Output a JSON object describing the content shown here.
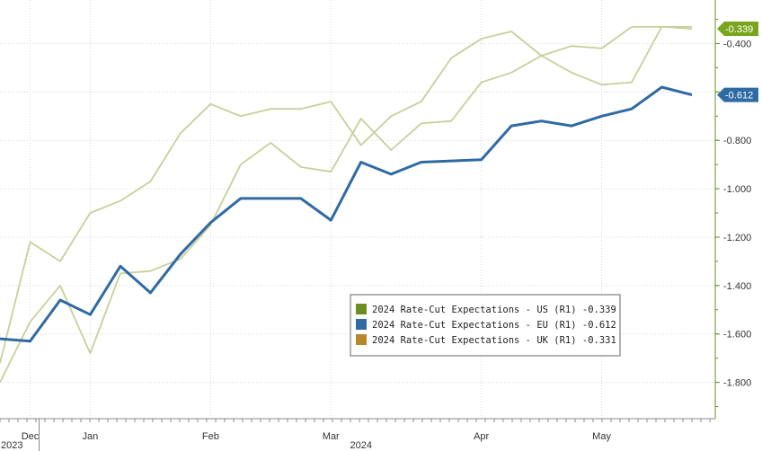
{
  "chart_data": {
    "type": "line",
    "x_labels": [
      "Dec",
      "Jan",
      "Feb",
      "Mar",
      "Apr",
      "May"
    ],
    "year_labels": [
      "2023",
      "2024"
    ],
    "y_axis_side": "right",
    "ylim": [
      -1.95,
      -0.22
    ],
    "y_ticks": [
      -0.4,
      -0.6,
      -0.8,
      -1.0,
      -1.2,
      -1.4,
      -1.6,
      -1.8
    ],
    "y_tick_labels": [
      "-0.400",
      "-0.600",
      "-0.800",
      "-1.000",
      "-1.200",
      "-1.400",
      "-1.600",
      "-1.800"
    ],
    "grid": true,
    "legend_position": "bottom-right",
    "x_range": [
      0,
      23
    ],
    "month_positions": [
      1,
      3,
      7,
      11,
      16,
      20
    ],
    "series": [
      {
        "name": "2024 Rate-Cut Expectations - US (R1)",
        "legend_value": "-0.339",
        "legend_color": "#6b8e23",
        "color": "#c9cf9a",
        "x": [
          0,
          1,
          2,
          3,
          4,
          5,
          6,
          7,
          8,
          9,
          10,
          11,
          12,
          13,
          14,
          15,
          16,
          17,
          18,
          19,
          20,
          21,
          22,
          23
        ],
        "values": [
          -1.8,
          -1.55,
          -1.4,
          -1.68,
          -1.35,
          -1.34,
          -1.29,
          -1.15,
          -0.9,
          -0.81,
          -0.91,
          -0.93,
          -0.71,
          -0.84,
          -0.73,
          -0.72,
          -0.56,
          -0.52,
          -0.45,
          -0.52,
          -0.57,
          -0.56,
          -0.33,
          -0.339
        ],
        "badge": "-0.339",
        "badge_color": "#7aa51f"
      },
      {
        "name": "2024 Rate-Cut Expectations - EU (R1)",
        "legend_value": "-0.612",
        "legend_color": "#2f6aa3",
        "color": "#2f6aa3",
        "x": [
          0,
          1,
          2,
          3,
          4,
          5,
          6,
          7,
          8,
          9,
          10,
          11,
          12,
          13,
          14,
          15,
          16,
          17,
          18,
          19,
          20,
          21,
          22,
          23
        ],
        "values": [
          -1.62,
          -1.63,
          -1.46,
          -1.52,
          -1.32,
          -1.43,
          -1.27,
          -1.14,
          -1.04,
          -1.04,
          -1.04,
          -1.13,
          -0.89,
          -0.94,
          -0.89,
          -0.885,
          -0.88,
          -0.74,
          -0.72,
          -0.74,
          -0.7,
          -0.67,
          -0.58,
          -0.612
        ],
        "badge": "-0.612",
        "badge_color": "#2f6aa3"
      },
      {
        "name": "2024 Rate-Cut Expectations - UK (R1)",
        "legend_value": "-0.331",
        "legend_color": "#b8862b",
        "color": "#c9cf9a",
        "x": [
          0,
          1,
          2,
          3,
          4,
          5,
          6,
          7,
          8,
          9,
          10,
          11,
          12,
          13,
          14,
          15,
          16,
          17,
          18,
          19,
          20,
          21,
          22,
          23
        ],
        "values": [
          -1.72,
          -1.22,
          -1.3,
          -1.1,
          -1.05,
          -0.97,
          -0.77,
          -0.65,
          -0.7,
          -0.67,
          -0.67,
          -0.64,
          -0.82,
          -0.7,
          -0.64,
          -0.46,
          -0.38,
          -0.35,
          -0.45,
          -0.41,
          -0.42,
          -0.331,
          -0.331,
          -0.331
        ]
      }
    ]
  }
}
